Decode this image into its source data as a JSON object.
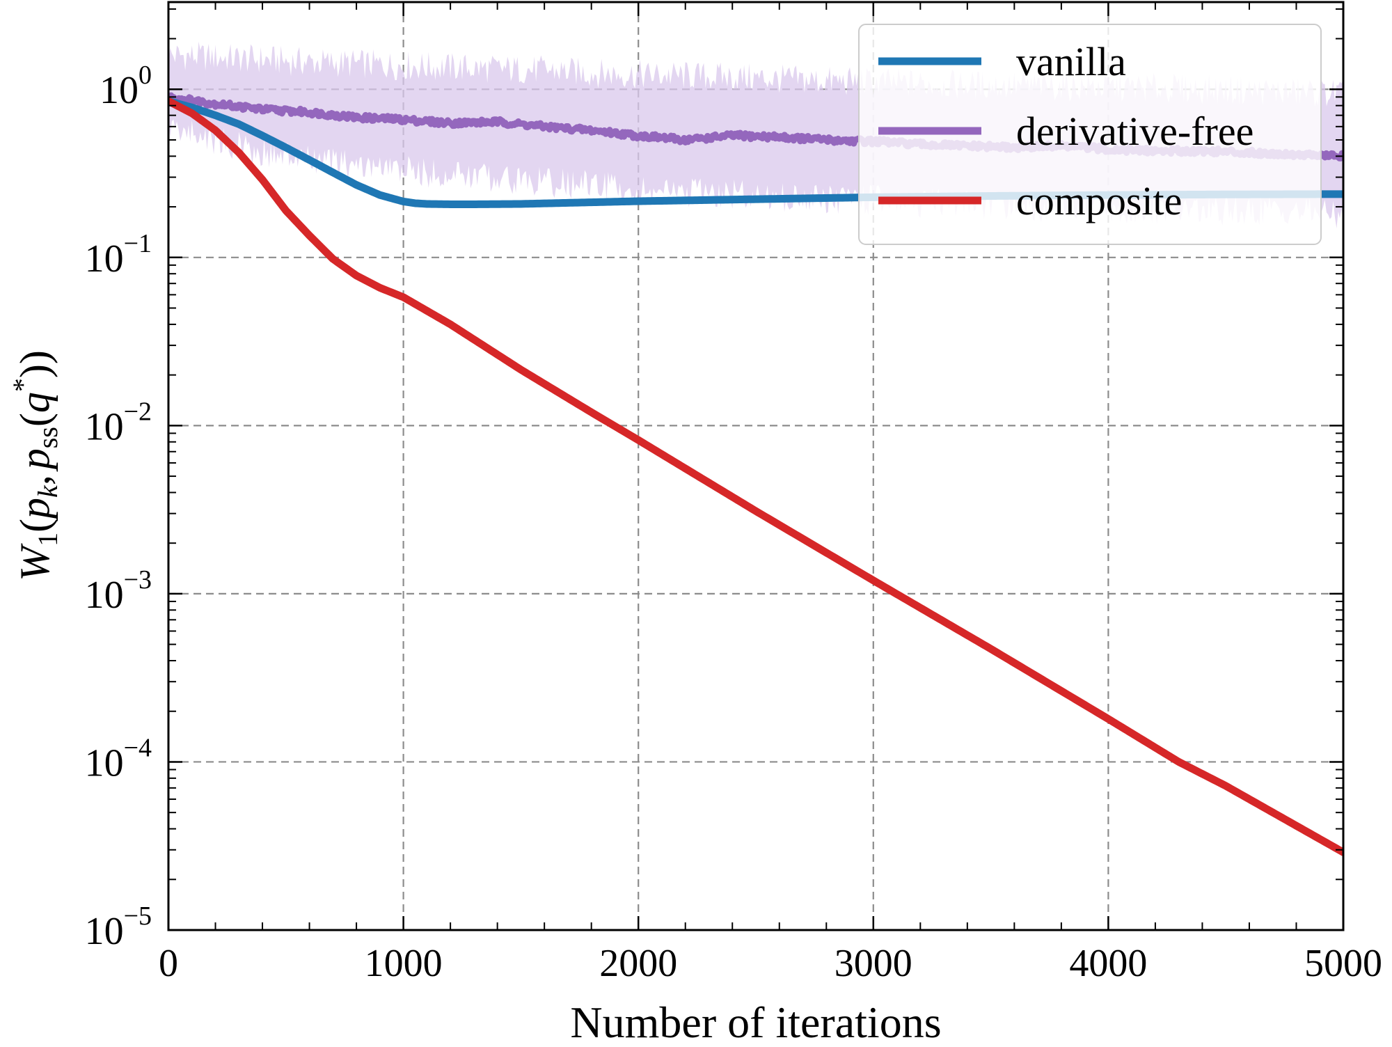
{
  "chart_data": {
    "type": "line",
    "title": "",
    "xlabel": "Number of iterations",
    "ylabel": {
      "W": "W",
      "sub1": "1",
      "open": "(",
      "p1": "p",
      "subk": "k",
      "comma": ",",
      "p2": "p",
      "subss": "ss",
      "open2": "(",
      "q": "q",
      "star": "*",
      "close": "))"
    },
    "x_ticks": [
      "0",
      "1000",
      "2000",
      "3000",
      "4000",
      "5000"
    ],
    "y_ticks": [
      {
        "base": "10",
        "exp": "0",
        "value": 1
      },
      {
        "base": "10",
        "exp": "−1",
        "value": 0.1
      },
      {
        "base": "10",
        "exp": "−2",
        "value": 0.01
      },
      {
        "base": "10",
        "exp": "−3",
        "value": 0.001
      },
      {
        "base": "10",
        "exp": "−4",
        "value": 0.0001
      },
      {
        "base": "10",
        "exp": "−5",
        "value": 1e-05
      }
    ],
    "xlim": [
      0,
      5000
    ],
    "ylim": [
      1e-05,
      3.3
    ],
    "yscale": "log",
    "grid": true,
    "legend_position": "top-right",
    "series": [
      {
        "name": "vanilla",
        "color": "#1f77b4",
        "x": [
          0,
          100,
          200,
          300,
          400,
          500,
          600,
          700,
          800,
          900,
          1000,
          1050,
          1100,
          1200,
          1300,
          1500,
          2000,
          2500,
          3000,
          3500,
          4000,
          4500,
          5000
        ],
        "y": [
          0.85,
          0.78,
          0.7,
          0.62,
          0.53,
          0.45,
          0.38,
          0.32,
          0.27,
          0.235,
          0.215,
          0.21,
          0.208,
          0.207,
          0.207,
          0.208,
          0.216,
          0.222,
          0.228,
          0.232,
          0.235,
          0.237,
          0.238
        ]
      },
      {
        "name": "derivative-free",
        "color": "#9467bd",
        "band_color": "#d9c8ec",
        "x": [
          0,
          200,
          400,
          600,
          800,
          1000,
          1200,
          1400,
          1600,
          1800,
          2000,
          2200,
          2400,
          2600,
          2800,
          3000,
          3200,
          3400,
          3600,
          3800,
          4000,
          4200,
          4400,
          4600,
          4800,
          5000
        ],
        "y": [
          0.9,
          0.82,
          0.76,
          0.73,
          0.68,
          0.66,
          0.63,
          0.64,
          0.6,
          0.57,
          0.53,
          0.5,
          0.53,
          0.52,
          0.5,
          0.49,
          0.47,
          0.46,
          0.45,
          0.46,
          0.44,
          0.43,
          0.43,
          0.42,
          0.41,
          0.4
        ],
        "band_upper": [
          1.6,
          1.55,
          1.5,
          1.45,
          1.42,
          1.38,
          1.35,
          1.32,
          1.3,
          1.25,
          1.22,
          1.2,
          1.18,
          1.15,
          1.12,
          1.1,
          1.08,
          1.06,
          1.05,
          1.04,
          1.03,
          1.02,
          1.0,
          0.98,
          0.96,
          0.95
        ],
        "band_lower": [
          0.6,
          0.5,
          0.42,
          0.38,
          0.35,
          0.33,
          0.31,
          0.3,
          0.28,
          0.27,
          0.25,
          0.24,
          0.24,
          0.23,
          0.22,
          0.22,
          0.21,
          0.21,
          0.2,
          0.2,
          0.2,
          0.19,
          0.19,
          0.19,
          0.19,
          0.18
        ]
      },
      {
        "name": "composite",
        "color": "#d62728",
        "x": [
          0,
          100,
          200,
          300,
          400,
          500,
          600,
          700,
          800,
          900,
          1000,
          1200,
          1500,
          1800,
          2000,
          2500,
          3000,
          3500,
          4000,
          4300,
          4500,
          5000
        ],
        "y": [
          0.85,
          0.72,
          0.57,
          0.42,
          0.29,
          0.19,
          0.135,
          0.098,
          0.078,
          0.066,
          0.058,
          0.04,
          0.0215,
          0.012,
          0.0082,
          0.0031,
          0.0012,
          0.00047,
          0.00018,
          0.0001,
          7.2e-05,
          2.9e-05
        ]
      }
    ]
  }
}
